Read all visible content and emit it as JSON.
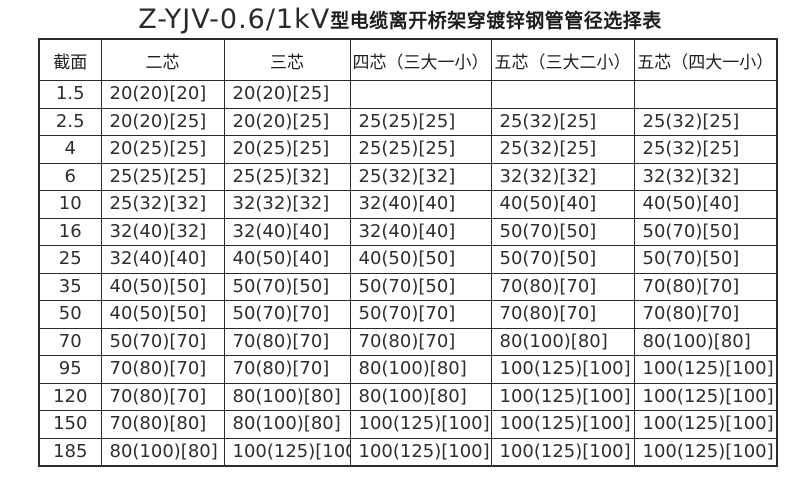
{
  "title": {
    "latin": "Z-YJV-0.6/1kV",
    "chinese": "型电缆离开桥架穿镀锌钢管管径选择表"
  },
  "table": {
    "columns": [
      "截面",
      "二芯",
      "三芯",
      "四芯（三大一小）",
      "五芯（三大二小）",
      "五芯（四大一小）"
    ],
    "rows": [
      {
        "section": "1.5",
        "values": [
          "20(20)[20]",
          "20(20)[25]",
          "",
          "",
          ""
        ]
      },
      {
        "section": "2.5",
        "values": [
          "20(20)[25]",
          "20(20)[25]",
          "25(25)[25]",
          "25(32)[25]",
          "25(32)[25]"
        ]
      },
      {
        "section": "4",
        "values": [
          "20(25)[25]",
          "20(25)[25]",
          "25(25)[25]",
          "25(32)[25]",
          "25(32)[25]"
        ]
      },
      {
        "section": "6",
        "values": [
          "25(25)[25]",
          "25(25)[32]",
          "25(32)[32]",
          "32(32)[32]",
          "32(32)[32]"
        ]
      },
      {
        "section": "10",
        "values": [
          "25(32)[32]",
          "32(32)[32]",
          "32(40)[40]",
          "40(50)[40]",
          "40(50)[40]"
        ]
      },
      {
        "section": "16",
        "values": [
          "32(40)[32]",
          "32(40)[40]",
          "32(40)[40]",
          "50(70)[50]",
          "50(70)[50]"
        ]
      },
      {
        "section": "25",
        "values": [
          "32(40)[40]",
          "40(50)[40]",
          "40(50)[50]",
          "50(70)[50]",
          "50(70)[50]"
        ]
      },
      {
        "section": "35",
        "values": [
          "40(50)[50]",
          "50(70)[50]",
          "50(70)[50]",
          "70(80)[70]",
          "70(80)[70]"
        ]
      },
      {
        "section": "50",
        "values": [
          "40(50)[50]",
          "50(70)[70]",
          "50(70)[70]",
          "70(80)[70]",
          "70(80)[70]"
        ]
      },
      {
        "section": "70",
        "values": [
          "50(70)[70]",
          "70(80)[70]",
          "70(80)[70]",
          "80(100)[80]",
          "80(100)[80]"
        ]
      },
      {
        "section": "95",
        "values": [
          "70(80)[70]",
          "70(80)[70]",
          "80(100)[80]",
          "100(125)[100]",
          "100(125)[100]"
        ]
      },
      {
        "section": "120",
        "values": [
          "70(80)[70]",
          "80(100)[80]",
          "80(100)[80]",
          "100(125)[100]",
          "100(125)[100]"
        ]
      },
      {
        "section": "150",
        "values": [
          "70(80)[80]",
          "80(100)[80]",
          "100(125)[100]",
          "100(125)[100]",
          "100(125)[100]"
        ]
      },
      {
        "section": "185",
        "values": [
          "80(100)[80]",
          "100(125)[100]",
          "100(125)[100]",
          "100(125)[100]",
          "100(125)[100]"
        ]
      }
    ]
  }
}
